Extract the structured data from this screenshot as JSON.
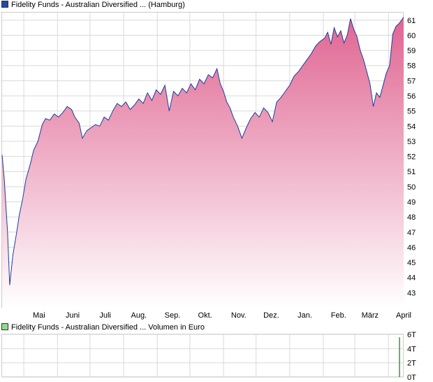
{
  "chart_data": [
    {
      "type": "area",
      "title": "Fidelity Funds - Australian Diversified ... (Hamburg)",
      "colors": {
        "line": "#1c3d9c",
        "fill_top": "#e06592",
        "fill_bottom": "#ffffff",
        "grid": "#d9d9d9",
        "legend_swatch": "#1f4aa8"
      },
      "grid": true,
      "y_axis_position": "right",
      "ylim": [
        42,
        61.5
      ],
      "y_ticks": [
        "43",
        "44",
        "45",
        "46",
        "47",
        "48",
        "49",
        "50",
        "51",
        "52",
        "53",
        "54",
        "55",
        "56",
        "57",
        "58",
        "59",
        "60",
        "61"
      ],
      "x_ticks": [
        "Mai",
        "Juni",
        "Juli",
        "Aug.",
        "Sep.",
        "Okt.",
        "Nov.",
        "Dez.",
        "Jan.",
        "Feb.",
        "März",
        "April"
      ],
      "x_range": [
        "2023-04-11",
        "2024-04-15"
      ],
      "points": [
        [
          "2023-04-11",
          52.1
        ],
        [
          "2023-04-13",
          50.5
        ],
        [
          "2023-04-16",
          47.0
        ],
        [
          "2023-04-18",
          43.5
        ],
        [
          "2023-04-21",
          45.5
        ],
        [
          "2023-04-24",
          46.8
        ],
        [
          "2023-04-27",
          48.2
        ],
        [
          "2023-04-30",
          49.2
        ],
        [
          "2023-05-03",
          50.5
        ],
        [
          "2023-05-07",
          51.5
        ],
        [
          "2023-05-10",
          52.4
        ],
        [
          "2023-05-14",
          53.0
        ],
        [
          "2023-05-18",
          54.1
        ],
        [
          "2023-05-21",
          54.5
        ],
        [
          "2023-05-25",
          54.4
        ],
        [
          "2023-05-29",
          54.8
        ],
        [
          "2023-06-02",
          54.6
        ],
        [
          "2023-06-06",
          54.9
        ],
        [
          "2023-06-10",
          55.3
        ],
        [
          "2023-06-14",
          55.1
        ],
        [
          "2023-06-17",
          54.6
        ],
        [
          "2023-06-21",
          54.2
        ],
        [
          "2023-06-24",
          53.2
        ],
        [
          "2023-06-28",
          53.7
        ],
        [
          "2023-07-02",
          53.9
        ],
        [
          "2023-07-06",
          54.1
        ],
        [
          "2023-07-10",
          54.0
        ],
        [
          "2023-07-14",
          54.6
        ],
        [
          "2023-07-18",
          54.4
        ],
        [
          "2023-07-22",
          55.0
        ],
        [
          "2023-07-26",
          55.5
        ],
        [
          "2023-07-30",
          55.3
        ],
        [
          "2023-08-03",
          55.6
        ],
        [
          "2023-08-07",
          55.1
        ],
        [
          "2023-08-11",
          55.4
        ],
        [
          "2023-08-15",
          55.8
        ],
        [
          "2023-08-19",
          55.5
        ],
        [
          "2023-08-23",
          56.2
        ],
        [
          "2023-08-27",
          55.7
        ],
        [
          "2023-08-31",
          56.4
        ],
        [
          "2023-09-04",
          56.1
        ],
        [
          "2023-09-08",
          56.7
        ],
        [
          "2023-09-12",
          55.0
        ],
        [
          "2023-09-16",
          56.3
        ],
        [
          "2023-09-20",
          56.0
        ],
        [
          "2023-09-24",
          56.5
        ],
        [
          "2023-09-28",
          56.2
        ],
        [
          "2023-10-02",
          56.8
        ],
        [
          "2023-10-06",
          56.4
        ],
        [
          "2023-10-10",
          57.1
        ],
        [
          "2023-10-14",
          56.8
        ],
        [
          "2023-10-18",
          57.4
        ],
        [
          "2023-10-22",
          57.2
        ],
        [
          "2023-10-26",
          57.8
        ],
        [
          "2023-10-29",
          56.8
        ],
        [
          "2023-11-01",
          56.3
        ],
        [
          "2023-11-04",
          55.6
        ],
        [
          "2023-11-07",
          55.2
        ],
        [
          "2023-11-10",
          54.6
        ],
        [
          "2023-11-14",
          54.0
        ],
        [
          "2023-11-18",
          53.2
        ],
        [
          "2023-11-22",
          53.9
        ],
        [
          "2023-11-26",
          54.5
        ],
        [
          "2023-11-30",
          54.9
        ],
        [
          "2023-12-04",
          54.6
        ],
        [
          "2023-12-08",
          55.2
        ],
        [
          "2023-12-12",
          54.9
        ],
        [
          "2023-12-16",
          54.3
        ],
        [
          "2023-12-20",
          55.6
        ],
        [
          "2023-12-24",
          55.9
        ],
        [
          "2023-12-28",
          56.3
        ],
        [
          "2024-01-01",
          56.7
        ],
        [
          "2024-01-05",
          57.3
        ],
        [
          "2024-01-09",
          57.6
        ],
        [
          "2024-01-13",
          58.0
        ],
        [
          "2024-01-17",
          58.4
        ],
        [
          "2024-01-21",
          58.8
        ],
        [
          "2024-01-25",
          59.3
        ],
        [
          "2024-01-29",
          59.6
        ],
        [
          "2024-02-02",
          59.8
        ],
        [
          "2024-02-05",
          60.2
        ],
        [
          "2024-02-08",
          59.4
        ],
        [
          "2024-02-11",
          60.5
        ],
        [
          "2024-02-14",
          59.9
        ],
        [
          "2024-02-17",
          60.3
        ],
        [
          "2024-02-20",
          59.5
        ],
        [
          "2024-02-23",
          60.0
        ],
        [
          "2024-02-26",
          61.1
        ],
        [
          "2024-02-29",
          60.4
        ],
        [
          "2024-03-03",
          59.9
        ],
        [
          "2024-03-06",
          59.0
        ],
        [
          "2024-03-09",
          58.4
        ],
        [
          "2024-03-12",
          57.6
        ],
        [
          "2024-03-15",
          56.8
        ],
        [
          "2024-03-18",
          55.3
        ],
        [
          "2024-03-21",
          56.2
        ],
        [
          "2024-03-24",
          55.9
        ],
        [
          "2024-03-27",
          56.7
        ],
        [
          "2024-03-30",
          57.5
        ],
        [
          "2024-04-02",
          58.0
        ],
        [
          "2024-04-05",
          60.1
        ],
        [
          "2024-04-08",
          60.6
        ],
        [
          "2024-04-11",
          60.8
        ],
        [
          "2024-04-15",
          61.2
        ]
      ]
    },
    {
      "type": "bar",
      "title": "Fidelity Funds - Australian Diversified ... Volumen in Euro",
      "colors": {
        "bar": "#2e9e2e",
        "legend_swatch": "#8fd98f",
        "grid": "#d9d9d9"
      },
      "grid": true,
      "y_axis_position": "right",
      "ylim": [
        0,
        6
      ],
      "y_ticks": [
        "0T",
        "2T",
        "4T",
        "6T"
      ],
      "bars": [
        {
          "date": "2024-04-11",
          "value": 5.6
        }
      ]
    }
  ]
}
